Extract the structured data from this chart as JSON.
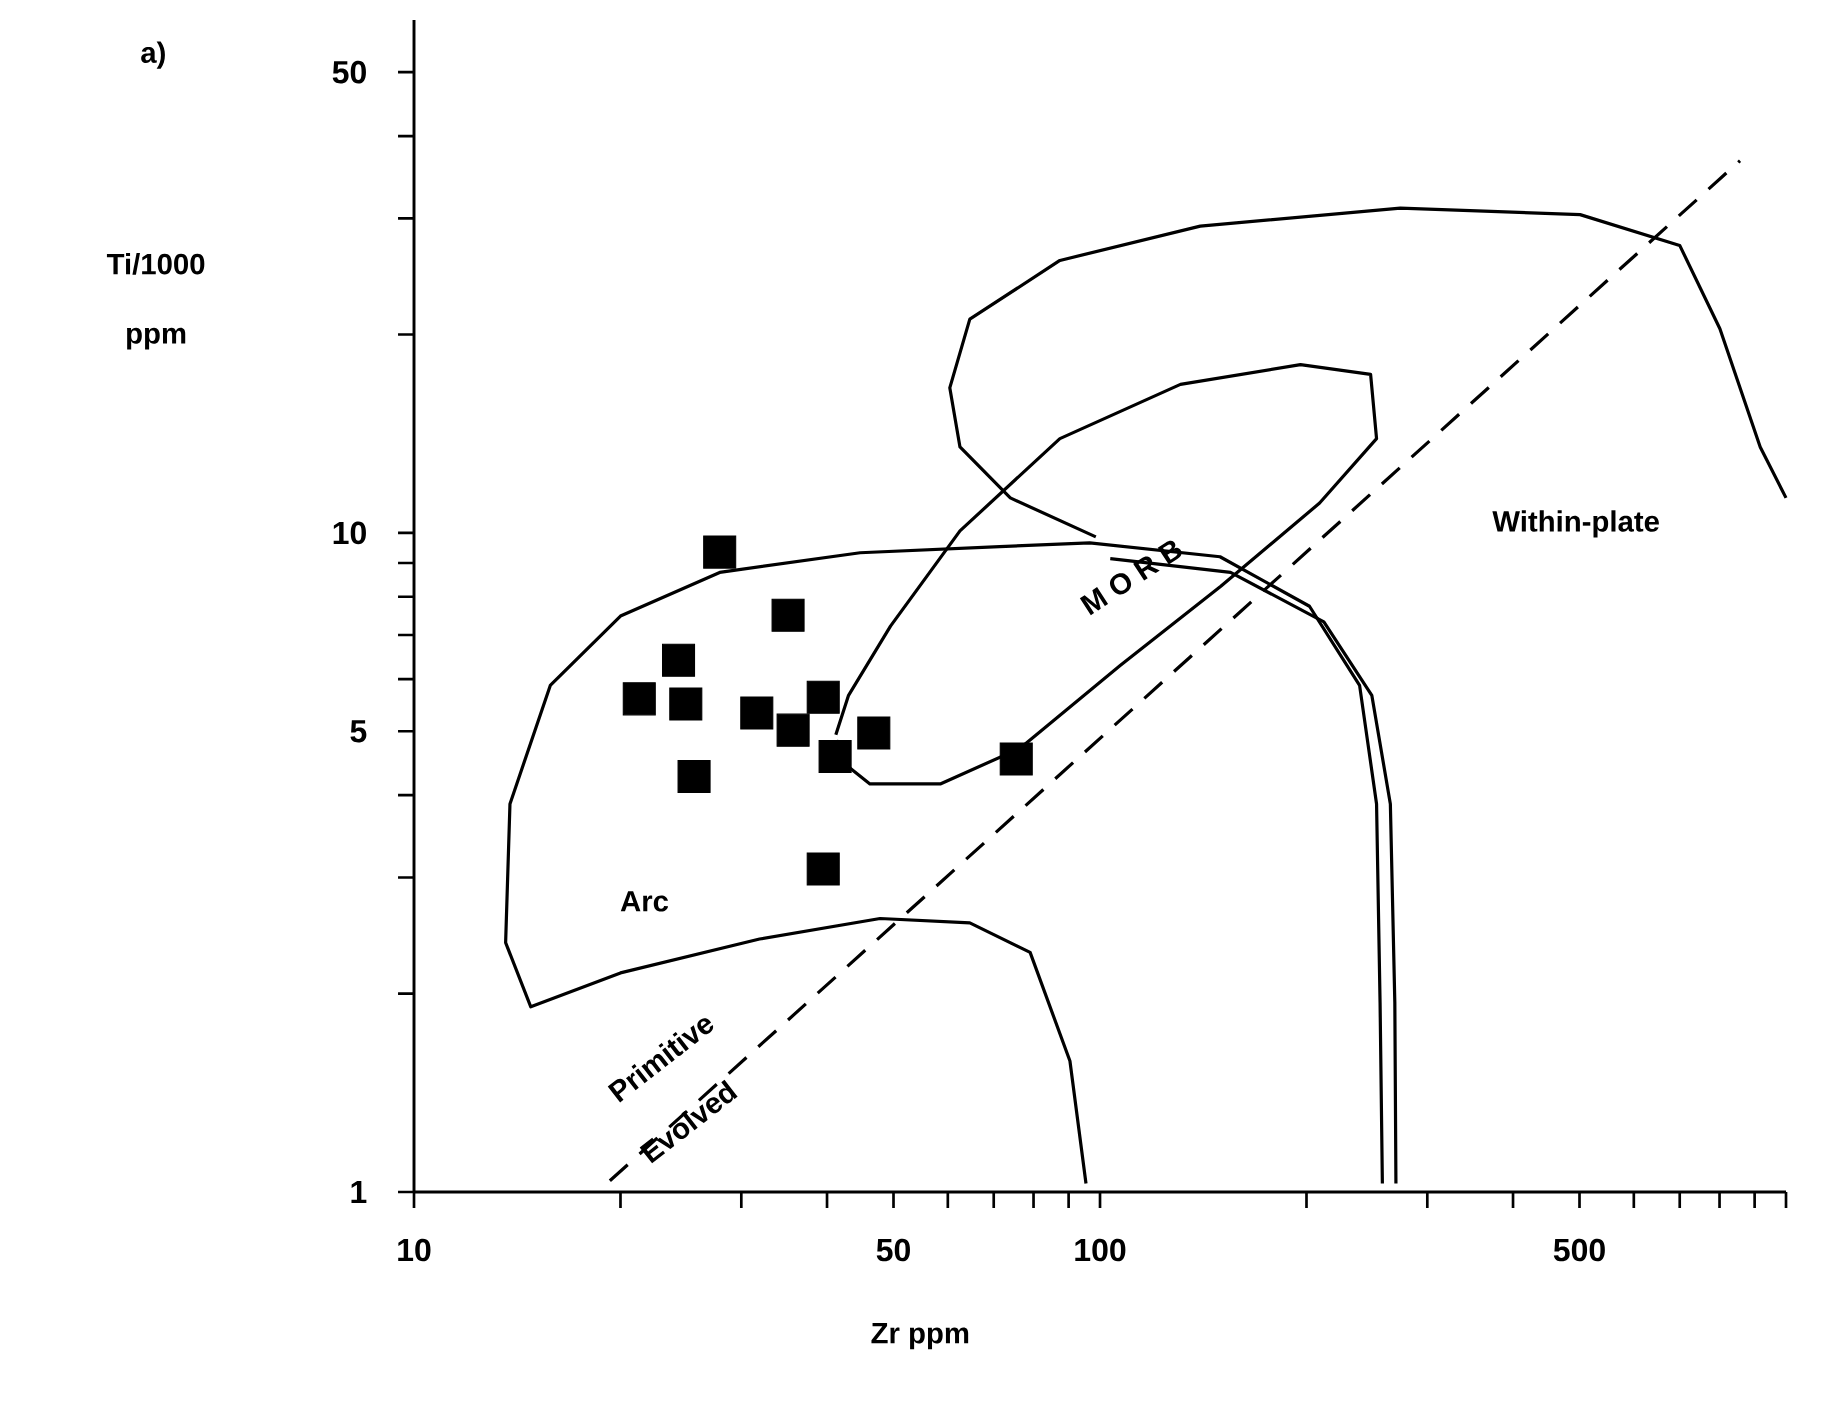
{
  "chart_data": {
    "type": "scatter",
    "log": "xy",
    "xlabel": "Zr  ppm",
    "ylabel": "Ti/1000 ppm",
    "xlim": [
      10,
      1000
    ],
    "ylim": [
      1,
      60
    ],
    "xticks": [
      10,
      {
        "value": 20,
        "label": null
      },
      {
        "value": 30,
        "label": null
      },
      {
        "value": 40,
        "label": null
      },
      50,
      {
        "value": 60,
        "label": null
      },
      {
        "value": 70,
        "label": null
      },
      {
        "value": 80,
        "label": null
      },
      {
        "value": 90,
        "label": null
      },
      100,
      {
        "value": 200,
        "label": null
      },
      {
        "value": 300,
        "label": null
      },
      {
        "value": 400,
        "label": null
      },
      500,
      {
        "value": 600,
        "label": null
      },
      {
        "value": 700,
        "label": null
      },
      {
        "value": 800,
        "label": null
      },
      {
        "value": 900,
        "label": null
      },
      {
        "value": 1000,
        "label": null
      }
    ],
    "yticks": [
      1,
      {
        "value": 2,
        "label": null
      },
      {
        "value": 3,
        "label": null
      },
      {
        "value": 4,
        "label": null
      },
      5,
      {
        "value": 6,
        "label": null
      },
      {
        "value": 7,
        "label": null
      },
      {
        "value": 8,
        "label": null
      },
      {
        "value": 9,
        "label": null
      },
      10,
      {
        "value": 20,
        "label": null
      },
      {
        "value": 30,
        "label": null
      },
      {
        "value": 40,
        "label": null
      },
      50
    ],
    "series": [
      {
        "marker": "square",
        "color": "#000000",
        "x": [
          27.9,
          35.1,
          24.3,
          21.3,
          24.9,
          31.6,
          39.5,
          35.7,
          46.8,
          41.1,
          25.6,
          39.5,
          75.5
        ],
        "values": [
          9.35,
          7.5,
          6.41,
          5.6,
          5.5,
          5.33,
          5.63,
          5.02,
          4.97,
          4.58,
          4.27,
          3.09,
          4.54
        ]
      },
      {
        "type": "line",
        "color": "#000000",
        "line_style": "solid",
        "x": [
          95.4,
          90.4,
          79.1,
          64.6,
          47.8,
          31.9,
          20.0,
          14.8,
          13.6,
          13.8,
          15.8,
          20.0,
          27.9,
          44.7,
          71.4,
          96.6,
          149.6,
          202,
          239,
          253,
          256,
          258
        ],
        "values": [
          1.03,
          1.58,
          2.31,
          2.56,
          2.6,
          2.42,
          2.15,
          1.91,
          2.39,
          3.88,
          5.87,
          7.48,
          8.71,
          9.33,
          9.53,
          9.66,
          9.2,
          7.74,
          5.87,
          3.88,
          1.94,
          1.03
        ]
      },
      {
        "type": "line",
        "color": "#000000",
        "line_style": "solid",
        "x": [
          103.5,
          155,
          212,
          249,
          265,
          269,
          270
        ],
        "values": [
          9.14,
          8.71,
          7.33,
          5.67,
          3.88,
          1.94,
          1.03
        ]
      },
      {
        "type": "line",
        "color": "#000000",
        "line_style": "solid",
        "x": [
          98.6,
          74.0,
          62.5,
          60.4,
          64.6,
          87.4,
          140,
          274,
          501,
          700,
          801,
          917,
          1000
        ],
        "values": [
          9.86,
          11.3,
          13.5,
          16.6,
          21.1,
          25.9,
          29.2,
          31.1,
          30.4,
          27.3,
          20.4,
          13.5,
          11.3
        ]
      },
      {
        "type": "line",
        "color": "#000000",
        "line_style": "solid",
        "x": [
          41.2,
          43.0,
          49.5,
          62.5,
          87.4,
          131,
          196,
          248,
          253,
          209,
          150,
          107,
          76.4,
          58.5,
          46.2,
          41.8,
          41.3
        ],
        "values": [
          4.94,
          5.67,
          7.22,
          10.07,
          13.9,
          16.8,
          18.0,
          17.4,
          13.9,
          11.1,
          8.3,
          6.29,
          4.71,
          4.16,
          4.16,
          4.52,
          4.85
        ]
      },
      {
        "type": "line",
        "color": "#000000",
        "line_style": "dashed",
        "x": [
          19.3,
          857
        ],
        "values": [
          1.04,
          36.7
        ]
      }
    ],
    "annotations": [
      "a)",
      "Arc",
      "M O R B",
      "Within-plate",
      "Primitive",
      "Evolved"
    ]
  }
}
